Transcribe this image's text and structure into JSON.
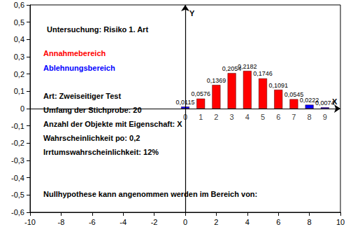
{
  "chart_data": {
    "type": "bar",
    "title": "Untersuchung: Risiko 1. Art",
    "axis_labels": {
      "x": "X",
      "y": "Y"
    },
    "series": [
      {
        "name": "Annahmebereich",
        "color": "#ff0000",
        "x": [
          1,
          2,
          3,
          4,
          5,
          6,
          7
        ],
        "values": [
          0.0576,
          0.1369,
          0.2054,
          0.2182,
          0.1746,
          0.1091,
          0.0545
        ],
        "value_labels": [
          "0,0576",
          "0,1369",
          "0,2054",
          "0,2182",
          "0,1746",
          "0,1091",
          "0,0545"
        ]
      },
      {
        "name": "Ablehnungsbereich",
        "color": "#0000ff",
        "x": [
          0,
          8,
          9
        ],
        "values": [
          0.0115,
          0.0222,
          0.0074
        ],
        "value_labels": [
          "0,0115",
          "0,0222",
          "0,0074"
        ]
      }
    ],
    "data_labels": true,
    "legend": "upper left",
    "annotations": [
      "Art: Zweiseitiger Test",
      "Umfang der Stichprobe: 20",
      "Anzahl der Objekte mit Eigenschaft: X",
      "Wahrscheinlichkeit po: 0,2",
      "Irrtumswahrscheinlichkeit: 12%",
      "Nullhypothese kann angenommen werden im Bereich von:"
    ],
    "xlim": [
      -10,
      10
    ],
    "xticks": [
      -10,
      -8,
      -6,
      -4,
      -2,
      0,
      2,
      4,
      6,
      8,
      10
    ],
    "ylim": [
      -0.6,
      0.6
    ],
    "yticks": [
      {
        "value": -0.6,
        "label": "-0,6"
      },
      {
        "value": -0.5,
        "label": "-0,5"
      },
      {
        "value": -0.4,
        "label": "-0,4"
      },
      {
        "value": -0.3,
        "label": "-0,3"
      },
      {
        "value": -0.2,
        "label": "-0,2"
      },
      {
        "value": -0.1,
        "label": "-0,1"
      },
      0,
      {
        "value": 0.1,
        "label": "0,1"
      },
      {
        "value": 0.2,
        "label": "0,2"
      },
      {
        "value": 0.3,
        "label": "0,3"
      },
      {
        "value": 0.4,
        "label": "0,4"
      },
      {
        "value": 0.5,
        "label": "0,5"
      },
      {
        "value": 0.6,
        "label": "0,6"
      }
    ],
    "grid": false
  }
}
